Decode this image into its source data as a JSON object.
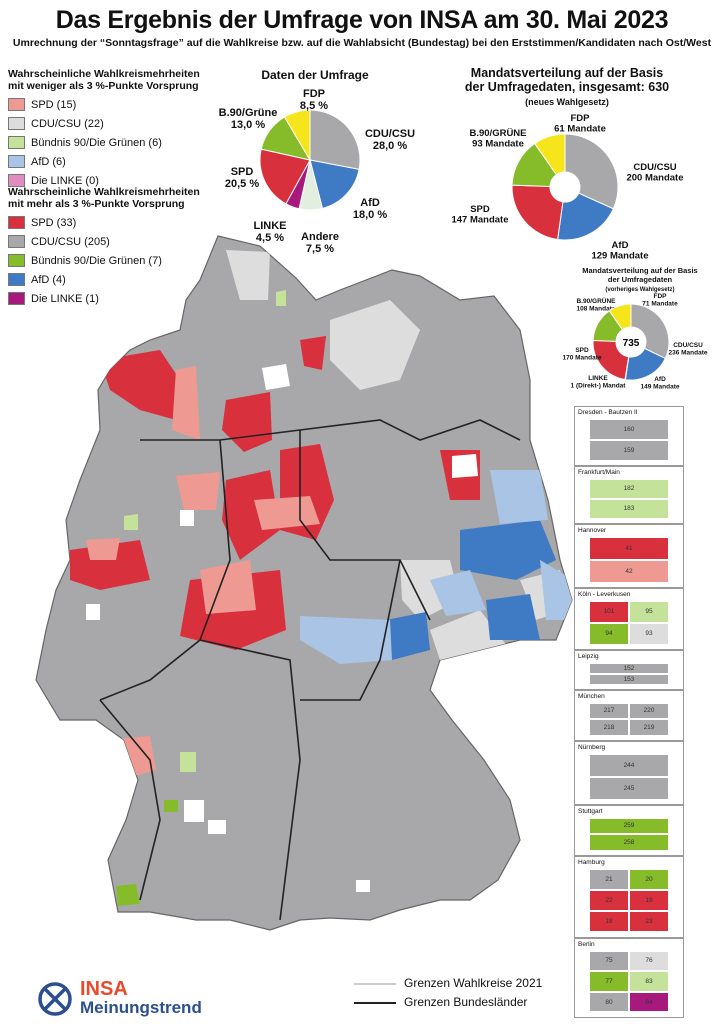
{
  "title": "Das Ergebnis der Umfrage von INSA am 30. Mai 2023",
  "subtitle": "Umrechnung der “Sonntagsfrage” auf die Wahlkreise bzw. auf die Wahlabsicht (Bundestag) bei den Erststimmen/Kandidaten nach Ost/West",
  "colors": {
    "spd_weak": "#ee9a92",
    "cdu_weak": "#dddddd",
    "gruene_weak": "#c4e29a",
    "afd_weak": "#a9c4e4",
    "linke_weak": "#e08cc0",
    "spd": "#d9303e",
    "cdu": "#a8a8aa",
    "gruene": "#86bc2a",
    "afd": "#3f7bc4",
    "linke": "#a8197d",
    "fdp": "#f7e51b",
    "andere": "#e2eee0"
  },
  "legend_weak": {
    "title_1": "Wahrscheinliche Wahlkreismehrheiten",
    "title_2": "mit weniger als 3 %-Punkte Vorsprung",
    "items": [
      {
        "label": "SPD (15)",
        "color": "#ee9a92"
      },
      {
        "label": "CDU/CSU (22)",
        "color": "#dddddd"
      },
      {
        "label": "Bündnis 90/Die Grünen (6)",
        "color": "#c4e29a"
      },
      {
        "label": "AfD (6)",
        "color": "#a9c4e4"
      },
      {
        "label": "Die LINKE (0)",
        "color": "#e08cc0"
      }
    ]
  },
  "legend_strong": {
    "title_1": "Wahrscheinliche Wahlkreismehrheiten",
    "title_2": "mit mehr als 3 %-Punkte Vorsprung",
    "items": [
      {
        "label": "SPD (33)",
        "color": "#d9303e"
      },
      {
        "label": "CDU/CSU (205)",
        "color": "#a8a8aa"
      },
      {
        "label": "Bündnis 90/Die Grünen (7)",
        "color": "#86bc2a"
      },
      {
        "label": "AfD (4)",
        "color": "#3f7bc4"
      },
      {
        "label": "Die LINKE (1)",
        "color": "#a8197d"
      }
    ]
  },
  "survey": {
    "title": "Daten der Umfrage",
    "slices": [
      {
        "party": "CDU/CSU",
        "value": 28.0,
        "label": "28,0 %",
        "color": "#a8a8aa"
      },
      {
        "party": "AfD",
        "value": 18.0,
        "label": "18,0 %",
        "color": "#3f7bc4"
      },
      {
        "party": "Andere",
        "value": 7.5,
        "label": "7,5 %",
        "color": "#e2eee0"
      },
      {
        "party": "LINKE",
        "value": 4.5,
        "label": "4,5 %",
        "color": "#a8197d"
      },
      {
        "party": "SPD",
        "value": 20.5,
        "label": "20,5 %",
        "color": "#d9303e"
      },
      {
        "party": "B.90/Grüne",
        "value": 13.0,
        "label": "13,0 %",
        "color": "#86bc2a"
      },
      {
        "party": "FDP",
        "value": 8.5,
        "label": "8,5 %",
        "color": "#f7e51b"
      }
    ]
  },
  "seats_new": {
    "title_1": "Mandatsverteilung auf der Basis",
    "title_2": "der Umfragedaten, insgesamt: 630",
    "note": "(neues Wahlgesetz)",
    "slices": [
      {
        "party": "CDU/CSU",
        "value": 200,
        "label": "200 Mandate",
        "color": "#a8a8aa"
      },
      {
        "party": "AfD",
        "value": 129,
        "label": "129 Mandate",
        "color": "#3f7bc4"
      },
      {
        "party": "SPD",
        "value": 147,
        "label": "147 Mandate",
        "color": "#d9303e"
      },
      {
        "party": "B.90/GRÜNE",
        "value": 93,
        "label": "93 Mandate",
        "color": "#86bc2a"
      },
      {
        "party": "FDP",
        "value": 61,
        "label": "61 Mandate",
        "color": "#f7e51b"
      }
    ]
  },
  "seats_old": {
    "title_1": "Mandatsverteilung auf der Basis",
    "title_2": "der Umfragedaten",
    "note": "(vorheriges Wahlgesetz)",
    "total": "735",
    "slices": [
      {
        "party": "CDU/CSU",
        "value": 236,
        "label": "236 Mandate",
        "color": "#a8a8aa"
      },
      {
        "party": "AfD",
        "value": 149,
        "label": "149 Mandate",
        "color": "#3f7bc4"
      },
      {
        "party": "LINKE",
        "value": 1,
        "label": "1 (Direkt-) Mandat",
        "color": "#a8197d"
      },
      {
        "party": "SPD",
        "value": 170,
        "label": "170 Mandate",
        "color": "#d9303e"
      },
      {
        "party": "B.90/GRÜNE",
        "value": 108,
        "label": "108 Mandate",
        "color": "#86bc2a"
      },
      {
        "party": "FDP",
        "value": 71,
        "label": "71 Mandate",
        "color": "#f7e51b"
      }
    ]
  },
  "insets": [
    {
      "title": "Dresden - Bautzen II",
      "numbers": [
        "160",
        "159"
      ]
    },
    {
      "title": "Frankfurt/Main",
      "numbers": [
        "182",
        "183"
      ]
    },
    {
      "title": "Hannover",
      "numbers": [
        "41",
        "42"
      ]
    },
    {
      "title": "Köln - Leverkusen",
      "numbers": [
        "101",
        "95",
        "94",
        "93"
      ]
    },
    {
      "title": "Leipzig",
      "numbers": [
        "152",
        "153"
      ]
    },
    {
      "title": "München",
      "numbers": [
        "217",
        "220",
        "218",
        "219"
      ]
    },
    {
      "title": "Nürnberg",
      "numbers": [
        "244",
        "245"
      ]
    },
    {
      "title": "Stuttgart",
      "numbers": [
        "259",
        "258"
      ]
    },
    {
      "title": "Hamburg",
      "numbers": [
        "21",
        "20",
        "22",
        "19",
        "18",
        "23"
      ]
    },
    {
      "title": "Berlin",
      "numbers": [
        "75",
        "76",
        "77",
        "83",
        "80",
        "84"
      ]
    }
  ],
  "footer": {
    "line1": "Grenzen Wahlkreise 2021",
    "line2": "Grenzen Bundesländer",
    "brand": "INSA",
    "brand_sub": "Meinungstrend"
  }
}
